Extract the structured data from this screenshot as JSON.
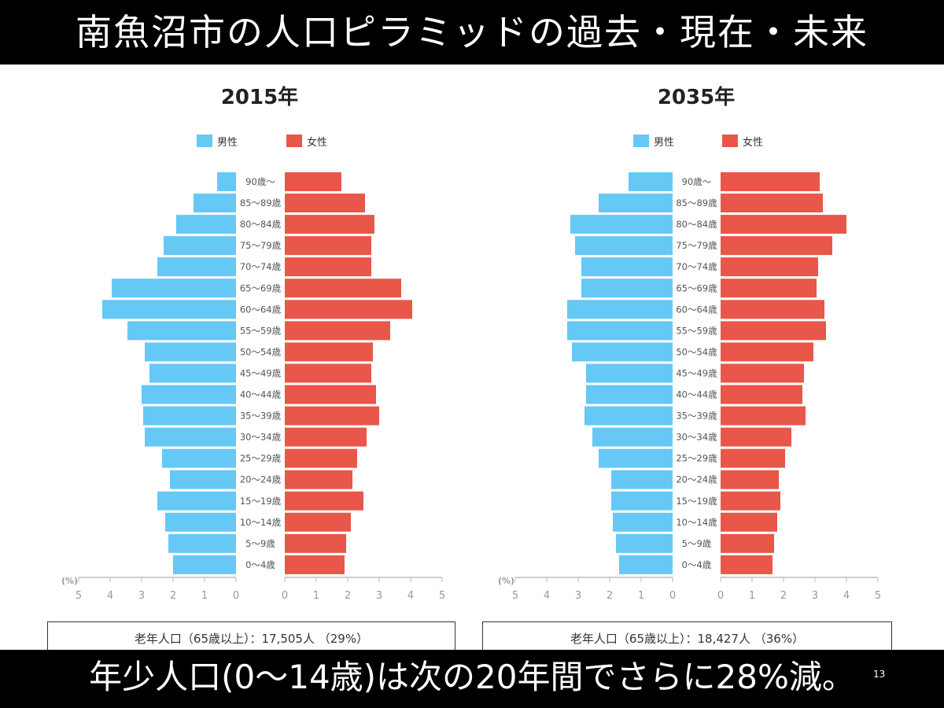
{
  "slide": {
    "title": "南魚沼市の人口ピラミッドの過去・現在・未来",
    "footer": "年少人口(0〜14歳)は次の20年間でさらに28%減。",
    "page_number": "13"
  },
  "colors": {
    "male": "#66c8f5",
    "female": "#e8574a"
  },
  "summaries": [
    "老年人口（65歳以上）：17,505人 （29%）",
    "老年人口（65歳以上）：18,427人 （36%）"
  ],
  "chart_data": [
    {
      "type": "bar",
      "title": "2015年",
      "legend": [
        "男性",
        "女性"
      ],
      "xlabel": "(%)",
      "xlim": [
        0,
        5
      ],
      "xticks": [
        "0",
        "1",
        "2",
        "3",
        "4",
        "5"
      ],
      "categories": [
        "90歳〜",
        "85〜89歳",
        "80〜84歳",
        "75〜79歳",
        "70〜74歳",
        "65〜69歳",
        "60〜64歳",
        "55〜59歳",
        "50〜54歳",
        "45〜49歳",
        "40〜44歳",
        "35〜39歳",
        "30〜34歳",
        "25〜29歳",
        "20〜24歳",
        "15〜19歳",
        "10〜14歳",
        "5〜9歳",
        "0〜4歳"
      ],
      "series": [
        {
          "name": "男性",
          "values": [
            0.6,
            1.35,
            1.9,
            2.3,
            2.5,
            3.95,
            4.25,
            3.45,
            2.9,
            2.75,
            3.0,
            2.95,
            2.9,
            2.35,
            2.1,
            2.5,
            2.25,
            2.15,
            2.0
          ]
        },
        {
          "name": "女性",
          "values": [
            1.8,
            2.55,
            2.85,
            2.75,
            2.75,
            3.7,
            4.05,
            3.35,
            2.8,
            2.75,
            2.9,
            3.0,
            2.6,
            2.3,
            2.15,
            2.5,
            2.1,
            1.95,
            1.9
          ]
        }
      ]
    },
    {
      "type": "bar",
      "title": "2035年",
      "legend": [
        "男性",
        "女性"
      ],
      "xlabel": "(%)",
      "xlim": [
        0,
        5
      ],
      "xticks": [
        "0",
        "1",
        "2",
        "3",
        "4",
        "5"
      ],
      "categories": [
        "90歳〜",
        "85〜89歳",
        "80〜84歳",
        "75〜79歳",
        "70〜74歳",
        "65〜69歳",
        "60〜64歳",
        "55〜59歳",
        "50〜54歳",
        "45〜49歳",
        "40〜44歳",
        "35〜39歳",
        "30〜34歳",
        "25〜29歳",
        "20〜24歳",
        "15〜19歳",
        "10〜14歳",
        "5〜9歳",
        "0〜4歳"
      ],
      "series": [
        {
          "name": "男性",
          "values": [
            1.4,
            2.35,
            3.25,
            3.1,
            2.9,
            2.9,
            3.35,
            3.35,
            3.2,
            2.75,
            2.75,
            2.8,
            2.55,
            2.35,
            1.95,
            1.95,
            1.9,
            1.8,
            1.7
          ]
        },
        {
          "name": "女性",
          "values": [
            3.15,
            3.25,
            4.0,
            3.55,
            3.1,
            3.05,
            3.3,
            3.35,
            2.95,
            2.65,
            2.6,
            2.7,
            2.25,
            2.05,
            1.85,
            1.9,
            1.8,
            1.7,
            1.65
          ]
        }
      ]
    }
  ]
}
